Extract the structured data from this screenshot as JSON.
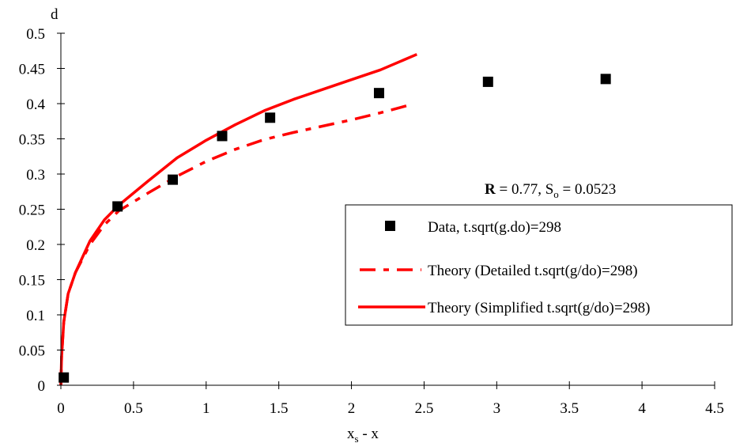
{
  "chart_data": {
    "type": "line",
    "xlabel": "x_s - x",
    "xlabel_main": "x",
    "xlabel_sub": "s",
    "xlabel_rest": " - x",
    "ylabel": "d",
    "xlim": [
      0,
      4.5
    ],
    "ylim": [
      0,
      0.5
    ],
    "x_ticks": [
      0,
      0.5,
      1,
      1.5,
      2,
      2.5,
      3,
      3.5,
      4,
      4.5
    ],
    "x_tick_labels": [
      "0",
      "0.5",
      "1",
      "1.5",
      "2",
      "2.5",
      "3",
      "3.5",
      "4",
      "4.5"
    ],
    "y_ticks": [
      0,
      0.05,
      0.1,
      0.15,
      0.2,
      0.25,
      0.3,
      0.35,
      0.4,
      0.45,
      0.5
    ],
    "y_tick_labels": [
      "0",
      "0.05",
      "0.1",
      "0.15",
      "0.2",
      "0.25",
      "0.3",
      "0.35",
      "0.4",
      "0.45",
      "0.5"
    ],
    "grid": false,
    "legend_position": "right",
    "annotation": {
      "bold": "R",
      "text1": " = 0.77, S",
      "sub": "o",
      "text2": " = 0.0523"
    },
    "series": [
      {
        "name": "Data, t.sqrt(g.do)=298",
        "kind": "marker",
        "color": "#000000",
        "x": [
          0.02,
          0.39,
          0.77,
          1.11,
          1.44,
          2.19,
          2.94,
          3.75
        ],
        "y": [
          0.011,
          0.254,
          0.292,
          0.354,
          0.38,
          0.415,
          0.431,
          0.435
        ]
      },
      {
        "name": "Theory (Detailed t.sqrt(g/do)=298)",
        "kind": "dashdot",
        "color": "#ff0000",
        "x": [
          0,
          0.005,
          0.02,
          0.05,
          0.1,
          0.2,
          0.3,
          0.4,
          0.6,
          0.8,
          1.0,
          1.2,
          1.4,
          1.6,
          1.8,
          2.0,
          2.2,
          2.38
        ],
        "y": [
          0,
          0.04,
          0.09,
          0.13,
          0.16,
          0.2,
          0.228,
          0.248,
          0.273,
          0.297,
          0.318,
          0.335,
          0.349,
          0.359,
          0.368,
          0.377,
          0.387,
          0.397
        ]
      },
      {
        "name": "Theory (Simplified t.sqrt(g/do)=298)",
        "kind": "solid",
        "color": "#ff0000",
        "x": [
          0,
          0.005,
          0.02,
          0.05,
          0.1,
          0.2,
          0.3,
          0.4,
          0.6,
          0.8,
          1.0,
          1.2,
          1.4,
          1.6,
          1.8,
          2.0,
          2.2,
          2.45
        ],
        "y": [
          0,
          0.04,
          0.09,
          0.13,
          0.16,
          0.205,
          0.235,
          0.256,
          0.29,
          0.323,
          0.348,
          0.37,
          0.39,
          0.406,
          0.42,
          0.434,
          0.448,
          0.47
        ]
      }
    ]
  }
}
